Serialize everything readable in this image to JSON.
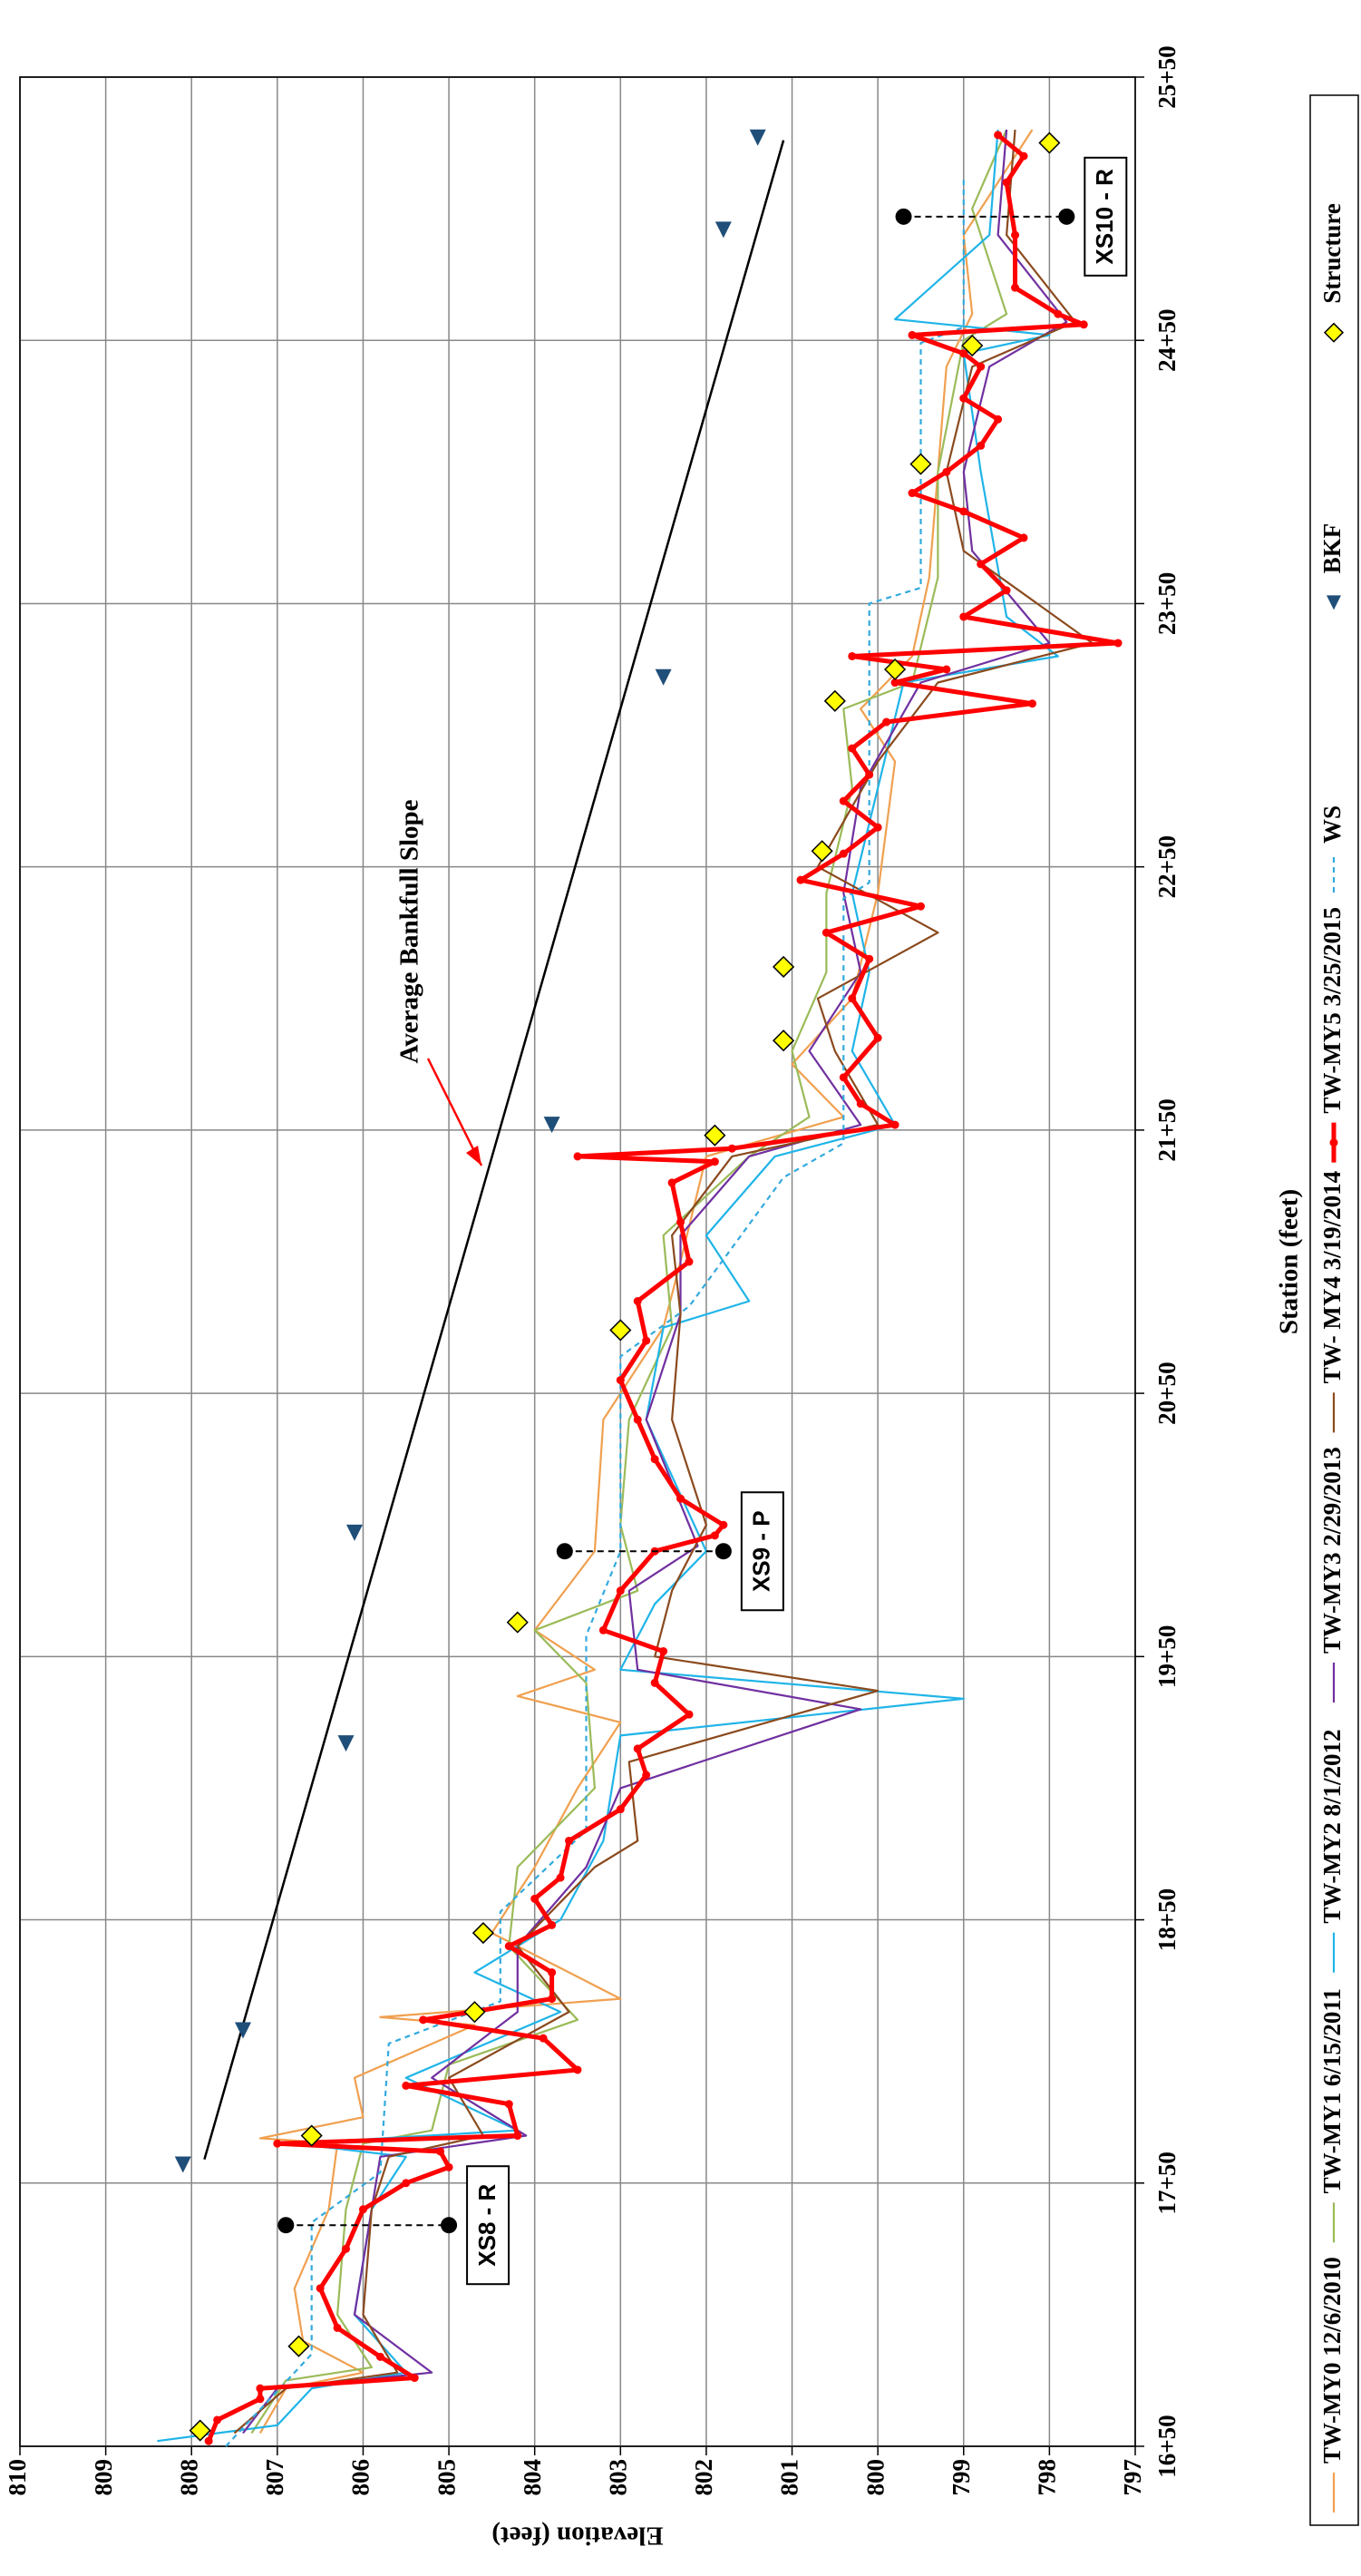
{
  "chart_data": {
    "type": "line",
    "xlabel": "Station (feet)",
    "ylabel": "Elevation (feet)",
    "xlim": [
      1650,
      2550
    ],
    "xticks": [
      {
        "value": 1650,
        "label": "16+50"
      },
      {
        "value": 1750,
        "label": "17+50"
      },
      {
        "value": 1850,
        "label": "18+50"
      },
      {
        "value": 1950,
        "label": "19+50"
      },
      {
        "value": 2050,
        "label": "20+50"
      },
      {
        "value": 2150,
        "label": "21+50"
      },
      {
        "value": 2250,
        "label": "22+50"
      },
      {
        "value": 2350,
        "label": "23+50"
      },
      {
        "value": 2450,
        "label": "24+50"
      },
      {
        "value": 2550,
        "label": "25+50"
      }
    ],
    "ylim": [
      797,
      810
    ],
    "yticks": [
      797,
      798,
      799,
      800,
      801,
      802,
      803,
      804,
      805,
      806,
      807,
      808,
      809,
      810
    ],
    "grid": true,
    "legend": "bottom",
    "series": [
      {
        "name": "TW-MY0 12/6/2010",
        "color": "#f0a050",
        "style": "line",
        "x": [
          1655,
          1672,
          1678,
          1690,
          1710,
          1740,
          1765,
          1767,
          1775,
          1790,
          1810,
          1813,
          1820,
          1845,
          1870,
          1900,
          1925,
          1935,
          1945,
          1960,
          1990,
          2040,
          2075,
          2100,
          2140,
          2155,
          2175,
          2200,
          2240,
          2290,
          2310,
          2330,
          2360,
          2400,
          2440,
          2460,
          2490,
          2530
        ],
        "y": [
          807.2,
          806.9,
          806.0,
          806.7,
          806.8,
          806.4,
          806.3,
          807.2,
          806.0,
          806.1,
          804.7,
          805.8,
          803.0,
          804.5,
          804.0,
          803.5,
          803.0,
          804.2,
          803.3,
          804.0,
          803.3,
          803.2,
          802.5,
          802.3,
          802.0,
          800.4,
          801.0,
          800.3,
          800.0,
          799.8,
          800.2,
          799.6,
          799.4,
          799.3,
          799.2,
          798.9,
          799.0,
          798.2
        ]
      },
      {
        "name": "TW-MY1 6/15/2011",
        "color": "#9bbb59",
        "style": "line",
        "x": [
          1655,
          1675,
          1680,
          1700,
          1740,
          1765,
          1770,
          1795,
          1812,
          1840,
          1870,
          1900,
          1940,
          1960,
          1975,
          2000,
          2040,
          2075,
          2110,
          2140,
          2155,
          2180,
          2210,
          2240,
          2280,
          2310,
          2320,
          2360,
          2400,
          2450,
          2460,
          2500,
          2530
        ],
        "y": [
          807.3,
          806.9,
          805.9,
          806.3,
          806.2,
          806.0,
          805.2,
          805.0,
          803.5,
          804.3,
          804.2,
          803.3,
          803.4,
          804.0,
          802.8,
          803.0,
          802.9,
          802.4,
          802.5,
          801.5,
          800.8,
          801.0,
          800.6,
          800.6,
          800.3,
          800.4,
          799.6,
          799.3,
          799.3,
          799.0,
          798.5,
          798.9,
          798.5
        ]
      },
      {
        "name": "TW-MY2 8/1/2012",
        "color": "#1fb4e8",
        "style": "line",
        "x": [
          1652,
          1658,
          1672,
          1678,
          1700,
          1740,
          1760,
          1765,
          1770,
          1790,
          1815,
          1830,
          1850,
          1880,
          1920,
          1934,
          1945,
          1970,
          1990,
          2040,
          2075,
          2085,
          2110,
          2140,
          2152,
          2180,
          2210,
          2240,
          2280,
          2320,
          2330,
          2345,
          2400,
          2445,
          2452,
          2458,
          2490,
          2530
        ],
        "y": [
          808.4,
          807.0,
          806.6,
          805.5,
          806.1,
          805.9,
          805.5,
          806.8,
          804.2,
          805.5,
          803.7,
          804.7,
          803.7,
          803.2,
          803.0,
          799.0,
          803.0,
          802.6,
          802.0,
          802.7,
          802.5,
          801.5,
          802.0,
          801.2,
          799.8,
          800.3,
          800.1,
          800.3,
          800.0,
          799.7,
          797.9,
          798.5,
          798.8,
          799.0,
          798.0,
          799.8,
          798.7,
          798.6
        ]
      },
      {
        "name": "TW-MY3 2/29/2013",
        "color": "#7030a0",
        "style": "line",
        "x": [
          1655,
          1672,
          1678,
          1700,
          1740,
          1760,
          1768,
          1790,
          1815,
          1840,
          1870,
          1900,
          1930,
          1945,
          1975,
          1992,
          2040,
          2080,
          2110,
          2140,
          2152,
          2180,
          2210,
          2240,
          2280,
          2320,
          2335,
          2370,
          2400,
          2440,
          2457,
          2490,
          2530
        ],
        "y": [
          807.4,
          807.0,
          805.2,
          806.1,
          805.9,
          805.8,
          804.1,
          805.2,
          804.2,
          804.2,
          803.4,
          803.0,
          800.2,
          802.8,
          802.9,
          802.1,
          802.7,
          802.3,
          802.3,
          801.5,
          800.2,
          800.8,
          800.2,
          800.4,
          800.2,
          799.5,
          798.0,
          798.9,
          799.0,
          798.7,
          797.8,
          798.6,
          798.5
        ]
      },
      {
        "name": "TW- MY4 3/19/2014",
        "color": "#8b4a1e",
        "style": "line",
        "x": [
          1655,
          1672,
          1678,
          1700,
          1740,
          1760,
          1768,
          1790,
          1815,
          1840,
          1870,
          1880,
          1910,
          1937,
          1950,
          1975,
          2000,
          2040,
          2080,
          2110,
          2140,
          2152,
          2180,
          2200,
          2225,
          2250,
          2290,
          2320,
          2335,
          2370,
          2400,
          2440,
          2457,
          2490,
          2530
        ],
        "y": [
          807.5,
          806.9,
          805.6,
          806.0,
          805.9,
          805.7,
          804.6,
          805.0,
          803.6,
          804.2,
          803.3,
          802.8,
          802.9,
          800.0,
          802.6,
          802.4,
          802.0,
          802.4,
          802.3,
          802.4,
          801.7,
          800.0,
          800.5,
          800.7,
          799.3,
          800.7,
          800.0,
          799.3,
          797.5,
          799.0,
          799.2,
          798.9,
          797.7,
          798.5,
          798.4
        ]
      },
      {
        "name": "TW-MY5 3/25/2015",
        "color": "#ff0000",
        "style": "line-marker",
        "x": [
          1652,
          1660,
          1668,
          1672,
          1676,
          1684,
          1695,
          1710,
          1725,
          1740,
          1750,
          1756,
          1762,
          1765,
          1768,
          1780,
          1787,
          1793,
          1805,
          1812,
          1820,
          1830,
          1840,
          1848,
          1858,
          1866,
          1880,
          1892,
          1905,
          1915,
          1928,
          1940,
          1952,
          1960,
          1975,
          1990,
          1996,
          2000,
          2010,
          2025,
          2040,
          2055,
          2070,
          2085,
          2100,
          2115,
          2130,
          2138,
          2140,
          2143,
          2152,
          2160,
          2170,
          2185,
          2200,
          2215,
          2225,
          2235,
          2245,
          2255,
          2265,
          2275,
          2285,
          2295,
          2305,
          2312,
          2320,
          2325,
          2330,
          2335,
          2345,
          2355,
          2365,
          2375,
          2385,
          2392,
          2400,
          2410,
          2420,
          2428,
          2440,
          2445,
          2452,
          2456,
          2460,
          2470,
          2490,
          2510,
          2520,
          2528
        ],
        "y": [
          807.8,
          807.7,
          807.2,
          807.2,
          805.4,
          805.8,
          806.3,
          806.5,
          806.2,
          806.0,
          805.5,
          805.0,
          805.1,
          807.0,
          804.2,
          804.3,
          805.5,
          803.5,
          803.9,
          805.3,
          803.8,
          803.8,
          804.3,
          803.8,
          804.0,
          803.7,
          803.6,
          803.0,
          802.7,
          802.8,
          802.2,
          802.6,
          802.5,
          803.2,
          803.0,
          802.6,
          801.9,
          801.8,
          802.3,
          802.6,
          802.8,
          803.0,
          802.7,
          802.8,
          802.2,
          802.3,
          802.4,
          801.9,
          803.5,
          801.7,
          799.8,
          800.2,
          800.4,
          800.0,
          800.3,
          800.1,
          800.6,
          799.5,
          800.9,
          800.4,
          800.0,
          800.4,
          800.1,
          800.3,
          799.9,
          798.2,
          799.8,
          799.2,
          800.3,
          797.2,
          799.0,
          798.5,
          798.8,
          798.3,
          799.0,
          799.6,
          799.2,
          798.8,
          798.6,
          799.0,
          798.8,
          799.0,
          799.6,
          797.6,
          797.9,
          798.4,
          798.4,
          798.5,
          798.3,
          798.6
        ]
      },
      {
        "name": "WS",
        "color": "#33aadd",
        "style": "dashed",
        "x": [
          1650,
          1685,
          1735,
          1754,
          1803,
          1819,
          1853,
          1884,
          1958,
          1990,
          2064,
          2083,
          2132,
          2145,
          2238,
          2244,
          2350,
          2356,
          2449,
          2455,
          2511
        ],
        "y": [
          807.6,
          806.6,
          806.6,
          805.8,
          805.7,
          804.4,
          804.4,
          803.4,
          803.4,
          803.0,
          803.0,
          802.2,
          801.1,
          800.4,
          800.4,
          800.1,
          800.1,
          799.5,
          799.5,
          799.0,
          799.0
        ]
      },
      {
        "name": "BKF",
        "color": "#1f4e79",
        "style": "triangle",
        "x": [
          1757,
          1808,
          1917,
          1997,
          2152,
          2322,
          2492,
          2527
        ],
        "y": [
          808.1,
          807.4,
          806.2,
          806.1,
          803.8,
          802.5,
          801.8,
          801.4
        ]
      },
      {
        "name": "Structure",
        "color": "#ffff00",
        "style": "diamond",
        "x": [
          1656,
          1688,
          1768,
          1815,
          1845,
          1963,
          2074,
          2148,
          2184,
          2212,
          2256,
          2313,
          2325,
          2403,
          2448,
          2525
        ],
        "y": [
          807.9,
          806.75,
          806.6,
          804.7,
          804.6,
          804.2,
          803.0,
          801.9,
          801.1,
          801.1,
          800.65,
          800.5,
          799.8,
          799.5,
          798.9,
          798.0
        ]
      }
    ],
    "bankfull_slope": {
      "x": [
        1759,
        2526
      ],
      "y": [
        807.85,
        801.1
      ]
    },
    "slope_label": "Average Bankfull Slope",
    "cross_sections": [
      {
        "label": "XS8 - R",
        "x": 1734,
        "y": [
          806.9,
          805.0
        ]
      },
      {
        "label": "XS9 - P",
        "x": 1990,
        "y": [
          803.65,
          801.8
        ]
      },
      {
        "label": "XS10 - R",
        "x": 2497,
        "y": [
          799.7,
          797.8
        ]
      }
    ]
  }
}
